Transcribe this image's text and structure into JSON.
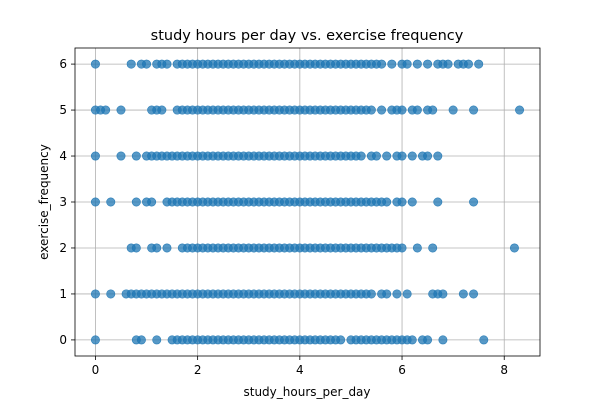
{
  "chart_data": {
    "type": "scatter",
    "title": "study hours per day vs. exercise frequency",
    "xlabel": "study_hours_per_day",
    "ylabel": "exercise_frequency",
    "xlim": [
      -0.4,
      8.7
    ],
    "ylim": [
      -0.35,
      6.35
    ],
    "xticks": [
      0,
      2,
      4,
      6,
      8
    ],
    "yticks": [
      0,
      1,
      2,
      3,
      4,
      5,
      6
    ],
    "grid": true,
    "marker_color": "#1f77b4",
    "marker_alpha": 0.75,
    "points_by_frequency": {
      "6": [
        0.0,
        0.7,
        0.9,
        1.0,
        1.2,
        1.3,
        1.4,
        1.6,
        1.7,
        1.8,
        1.9,
        2.0,
        2.1,
        2.2,
        2.3,
        2.4,
        2.5,
        2.6,
        2.7,
        2.8,
        2.9,
        3.0,
        3.1,
        3.2,
        3.3,
        3.4,
        3.5,
        3.6,
        3.7,
        3.8,
        3.9,
        4.0,
        4.1,
        4.2,
        4.3,
        4.4,
        4.5,
        4.6,
        4.7,
        4.8,
        4.9,
        5.0,
        5.1,
        5.2,
        5.3,
        5.4,
        5.5,
        5.6,
        5.8,
        6.0,
        6.1,
        6.3,
        6.5,
        6.7,
        6.8,
        6.9,
        7.1,
        7.2,
        7.3,
        7.5
      ],
      "5": [
        0.0,
        0.1,
        0.2,
        0.5,
        1.1,
        1.2,
        1.3,
        1.6,
        1.7,
        1.8,
        1.9,
        2.0,
        2.1,
        2.2,
        2.3,
        2.4,
        2.5,
        2.6,
        2.7,
        2.8,
        2.9,
        3.0,
        3.1,
        3.2,
        3.3,
        3.4,
        3.5,
        3.6,
        3.7,
        3.8,
        3.9,
        4.0,
        4.1,
        4.2,
        4.3,
        4.4,
        4.5,
        4.6,
        4.7,
        4.8,
        4.9,
        5.0,
        5.1,
        5.2,
        5.3,
        5.4,
        5.6,
        5.8,
        5.9,
        6.0,
        6.2,
        6.3,
        6.5,
        6.6,
        7.0,
        7.4,
        8.3
      ],
      "4": [
        0.0,
        0.5,
        0.8,
        1.0,
        1.1,
        1.2,
        1.3,
        1.4,
        1.5,
        1.6,
        1.7,
        1.8,
        1.9,
        2.0,
        2.1,
        2.2,
        2.3,
        2.4,
        2.5,
        2.6,
        2.7,
        2.8,
        2.9,
        3.0,
        3.1,
        3.2,
        3.3,
        3.4,
        3.5,
        3.6,
        3.7,
        3.8,
        3.9,
        4.0,
        4.1,
        4.2,
        4.3,
        4.4,
        4.5,
        4.6,
        4.7,
        4.8,
        4.9,
        5.0,
        5.1,
        5.2,
        5.4,
        5.5,
        5.7,
        5.9,
        6.0,
        6.2,
        6.4,
        6.5,
        6.7
      ],
      "3": [
        0.0,
        0.3,
        0.8,
        1.0,
        1.1,
        1.4,
        1.5,
        1.6,
        1.7,
        1.8,
        1.9,
        2.0,
        2.1,
        2.2,
        2.3,
        2.4,
        2.5,
        2.6,
        2.7,
        2.8,
        2.9,
        3.0,
        3.1,
        3.2,
        3.3,
        3.4,
        3.5,
        3.6,
        3.7,
        3.8,
        3.9,
        4.0,
        4.1,
        4.2,
        4.3,
        4.4,
        4.5,
        4.6,
        4.7,
        4.8,
        4.9,
        5.0,
        5.1,
        5.2,
        5.3,
        5.4,
        5.5,
        5.6,
        5.7,
        5.9,
        6.0,
        6.2,
        6.7,
        7.4
      ],
      "2": [
        0.7,
        0.8,
        1.1,
        1.2,
        1.4,
        1.7,
        1.8,
        1.9,
        2.0,
        2.1,
        2.2,
        2.3,
        2.4,
        2.5,
        2.6,
        2.7,
        2.8,
        2.9,
        3.0,
        3.1,
        3.2,
        3.3,
        3.4,
        3.5,
        3.6,
        3.7,
        3.8,
        3.9,
        4.0,
        4.1,
        4.2,
        4.3,
        4.4,
        4.5,
        4.6,
        4.7,
        4.8,
        4.9,
        5.0,
        5.1,
        5.2,
        5.3,
        5.4,
        5.5,
        5.6,
        5.7,
        5.8,
        5.9,
        6.0,
        6.3,
        6.6,
        8.2
      ],
      "1": [
        0.0,
        0.3,
        0.6,
        0.7,
        0.8,
        0.9,
        1.0,
        1.1,
        1.2,
        1.3,
        1.4,
        1.5,
        1.6,
        1.7,
        1.8,
        1.9,
        2.0,
        2.1,
        2.2,
        2.3,
        2.4,
        2.5,
        2.6,
        2.7,
        2.8,
        2.9,
        3.0,
        3.1,
        3.2,
        3.3,
        3.4,
        3.5,
        3.6,
        3.7,
        3.8,
        3.9,
        4.0,
        4.1,
        4.2,
        4.3,
        4.4,
        4.5,
        4.6,
        4.7,
        4.8,
        4.9,
        5.0,
        5.1,
        5.2,
        5.3,
        5.4,
        5.6,
        5.7,
        5.9,
        6.1,
        6.6,
        6.7,
        6.8,
        7.2,
        7.4
      ],
      "0": [
        0.0,
        0.8,
        0.9,
        1.2,
        1.5,
        1.6,
        1.7,
        1.8,
        1.9,
        2.0,
        2.1,
        2.2,
        2.3,
        2.4,
        2.5,
        2.6,
        2.7,
        2.8,
        2.9,
        3.0,
        3.1,
        3.2,
        3.3,
        3.4,
        3.5,
        3.6,
        3.7,
        3.8,
        3.9,
        4.0,
        4.1,
        4.2,
        4.3,
        4.4,
        4.5,
        4.6,
        4.7,
        4.8,
        5.0,
        5.1,
        5.2,
        5.3,
        5.4,
        5.5,
        5.6,
        5.7,
        5.8,
        5.9,
        6.0,
        6.1,
        6.2,
        6.4,
        6.5,
        6.8,
        7.6
      ]
    }
  }
}
